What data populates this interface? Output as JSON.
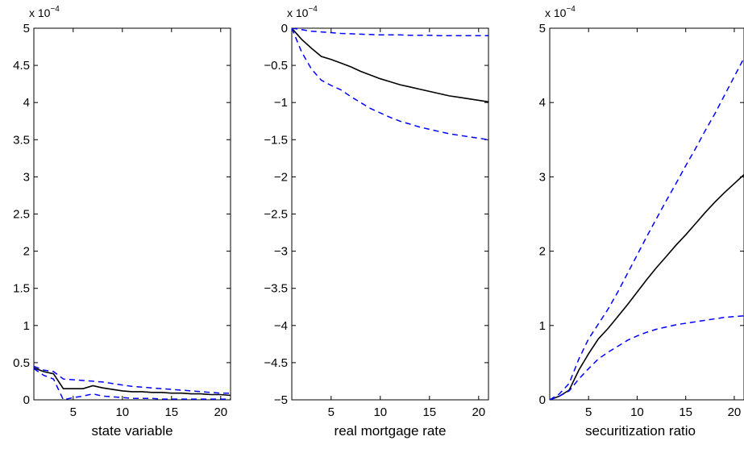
{
  "colors": {
    "central": "#000000",
    "band": "#0000ff",
    "axis": "#000000"
  },
  "chart_data": [
    {
      "type": "line",
      "xlabel": "state variable",
      "ylabel": "",
      "multiplier": "x 10",
      "multiplier_exponent": "−4",
      "xlim": [
        1,
        21
      ],
      "ylim": [
        0,
        5
      ],
      "xticks": [
        5,
        10,
        15,
        20
      ],
      "yticks": [
        0,
        0.5,
        1,
        1.5,
        2,
        2.5,
        3,
        3.5,
        4,
        4.5,
        5
      ],
      "x": [
        1,
        2,
        3,
        4,
        5,
        6,
        7,
        8,
        9,
        10,
        11,
        12,
        13,
        14,
        15,
        16,
        17,
        18,
        19,
        20,
        21
      ],
      "series": [
        {
          "style": "solid",
          "values": [
            0.43,
            0.38,
            0.35,
            0.15,
            0.15,
            0.15,
            0.19,
            0.16,
            0.14,
            0.12,
            0.11,
            0.11,
            0.1,
            0.1,
            0.09,
            0.09,
            0.08,
            0.08,
            0.07,
            0.07,
            0.06
          ]
        },
        {
          "style": "dashed",
          "values": [
            0.45,
            0.4,
            0.38,
            0.28,
            0.27,
            0.26,
            0.25,
            0.24,
            0.22,
            0.2,
            0.18,
            0.17,
            0.16,
            0.15,
            0.14,
            0.13,
            0.12,
            0.11,
            0.1,
            0.09,
            0.09
          ]
        },
        {
          "style": "dashed",
          "values": [
            0.42,
            0.33,
            0.28,
            0.0,
            0.03,
            0.05,
            0.08,
            0.05,
            0.04,
            0.03,
            0.02,
            0.02,
            0.02,
            0.01,
            0.01,
            0.01,
            0.01,
            0.01,
            0.01,
            0.01,
            0.01
          ]
        }
      ]
    },
    {
      "type": "line",
      "xlabel": "real mortgage rate",
      "ylabel": "",
      "multiplier": "x 10",
      "multiplier_exponent": "−4",
      "xlim": [
        1,
        21
      ],
      "ylim": [
        -5,
        0
      ],
      "xticks": [
        5,
        10,
        15,
        20
      ],
      "yticks": [
        -5,
        -4.5,
        -4,
        -3.5,
        -3,
        -2.5,
        -2,
        -1.5,
        -1,
        -0.5,
        0
      ],
      "ytick_labels": [
        "−5",
        "−4.5",
        "−4",
        "−3.5",
        "−3",
        "−2.5",
        "−2",
        "−1.5",
        "−1",
        "−0.5",
        "0"
      ],
      "x": [
        1,
        2,
        3,
        4,
        5,
        6,
        7,
        8,
        9,
        10,
        11,
        12,
        13,
        14,
        15,
        16,
        17,
        18,
        19,
        20,
        21
      ],
      "series": [
        {
          "style": "solid",
          "values": [
            0,
            -0.15,
            -0.27,
            -0.38,
            -0.42,
            -0.47,
            -0.52,
            -0.58,
            -0.63,
            -0.68,
            -0.72,
            -0.76,
            -0.79,
            -0.82,
            -0.85,
            -0.88,
            -0.91,
            -0.93,
            -0.95,
            -0.97,
            -0.99
          ]
        },
        {
          "style": "dashed",
          "values": [
            0,
            -0.02,
            -0.04,
            -0.05,
            -0.06,
            -0.07,
            -0.075,
            -0.08,
            -0.085,
            -0.09,
            -0.09,
            -0.09,
            -0.095,
            -0.095,
            -0.095,
            -0.1,
            -0.1,
            -0.1,
            -0.1,
            -0.1,
            -0.1
          ]
        },
        {
          "style": "dashed",
          "values": [
            0,
            -0.32,
            -0.55,
            -0.7,
            -0.77,
            -0.83,
            -0.92,
            -1.0,
            -1.08,
            -1.14,
            -1.2,
            -1.25,
            -1.29,
            -1.33,
            -1.36,
            -1.39,
            -1.42,
            -1.44,
            -1.46,
            -1.48,
            -1.5
          ]
        }
      ]
    },
    {
      "type": "line",
      "xlabel": "securitization ratio",
      "ylabel": "",
      "multiplier": "x 10",
      "multiplier_exponent": "−4",
      "xlim": [
        1,
        21
      ],
      "ylim": [
        0,
        5
      ],
      "xticks": [
        5,
        10,
        15,
        20
      ],
      "yticks": [
        0,
        1,
        2,
        3,
        4,
        5
      ],
      "x": [
        1,
        2,
        3,
        4,
        5,
        6,
        7,
        8,
        9,
        10,
        11,
        12,
        13,
        14,
        15,
        16,
        17,
        18,
        19,
        20,
        21
      ],
      "series": [
        {
          "style": "solid",
          "values": [
            0,
            0.05,
            0.13,
            0.4,
            0.62,
            0.82,
            0.96,
            1.12,
            1.28,
            1.45,
            1.62,
            1.78,
            1.93,
            2.08,
            2.22,
            2.37,
            2.52,
            2.66,
            2.79,
            2.91,
            3.03
          ]
        },
        {
          "style": "dashed",
          "values": [
            0,
            0.08,
            0.22,
            0.55,
            0.82,
            1.02,
            1.22,
            1.45,
            1.7,
            1.95,
            2.2,
            2.44,
            2.68,
            2.91,
            3.15,
            3.38,
            3.62,
            3.85,
            4.1,
            4.35,
            4.6
          ]
        },
        {
          "style": "dashed",
          "values": [
            0,
            0.05,
            0.12,
            0.28,
            0.42,
            0.55,
            0.64,
            0.72,
            0.8,
            0.86,
            0.91,
            0.95,
            0.98,
            1.01,
            1.03,
            1.05,
            1.07,
            1.09,
            1.11,
            1.12,
            1.13
          ]
        }
      ]
    }
  ]
}
